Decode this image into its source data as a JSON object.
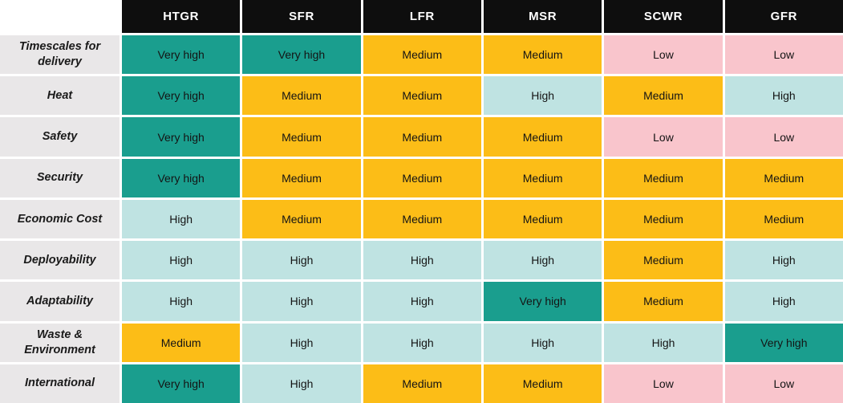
{
  "chart_data": {
    "type": "heatmap",
    "columns": [
      "HTGR",
      "SFR",
      "LFR",
      "MSR",
      "SCWR",
      "GFR"
    ],
    "rows": [
      {
        "label": "Timescales for delivery",
        "values": [
          "Very high",
          "Very high",
          "Medium",
          "Medium",
          "Low",
          "Low"
        ]
      },
      {
        "label": "Heat",
        "values": [
          "Very high",
          "Medium",
          "Medium",
          "High",
          "Medium",
          "High"
        ]
      },
      {
        "label": "Safety",
        "values": [
          "Very high",
          "Medium",
          "Medium",
          "Medium",
          "Low",
          "Low"
        ]
      },
      {
        "label": "Security",
        "values": [
          "Very high",
          "Medium",
          "Medium",
          "Medium",
          "Medium",
          "Medium"
        ]
      },
      {
        "label": "Economic Cost",
        "values": [
          "High",
          "Medium",
          "Medium",
          "Medium",
          "Medium",
          "Medium"
        ]
      },
      {
        "label": "Deployability",
        "values": [
          "High",
          "High",
          "High",
          "High",
          "Medium",
          "High"
        ]
      },
      {
        "label": "Adaptability",
        "values": [
          "High",
          "High",
          "High",
          "Very high",
          "Medium",
          "High"
        ]
      },
      {
        "label": "Waste & Environment",
        "values": [
          "Medium",
          "High",
          "High",
          "High",
          "High",
          "Very high"
        ]
      },
      {
        "label": "International",
        "values": [
          "Very high",
          "High",
          "Medium",
          "Medium",
          "Low",
          "Low"
        ]
      }
    ],
    "scale": [
      "Low",
      "Medium",
      "High",
      "Very high"
    ],
    "palette": {
      "Very high": "#1a9e8e",
      "High": "#bfe3e2",
      "Medium": "#fcbd17",
      "Low": "#f9c5cc"
    },
    "header_bg": "#0e0e0e",
    "header_text": "#ffffff",
    "row_label_bg": "#e9e7e8"
  }
}
